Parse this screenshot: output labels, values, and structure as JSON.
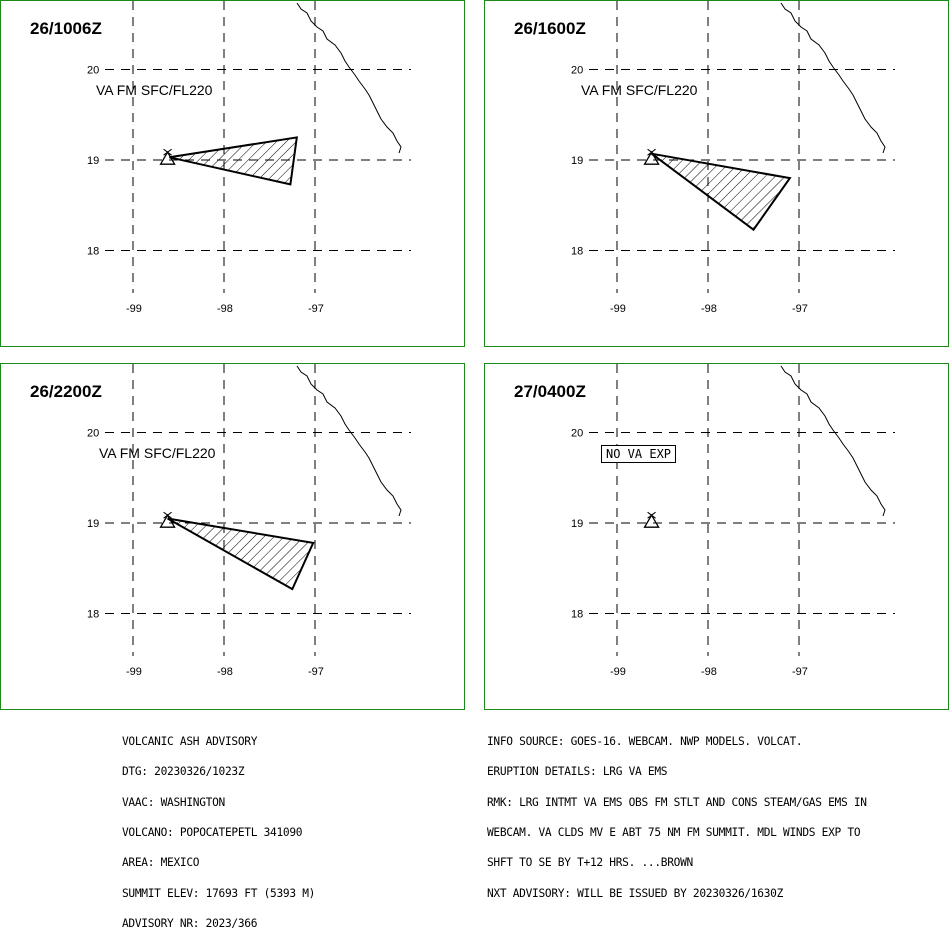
{
  "panels": [
    {
      "title": "26/1006Z",
      "label": "VA FM SFC/FL220",
      "plume": [
        [
          -98.6,
          19.03
        ],
        [
          -97.2,
          19.25
        ],
        [
          -97.27,
          18.73
        ]
      ]
    },
    {
      "title": "26/1600Z",
      "label": "VA FM SFC/FL220",
      "plume": [
        [
          -98.62,
          19.07
        ],
        [
          -97.1,
          18.8
        ],
        [
          -97.5,
          18.23
        ]
      ]
    },
    {
      "title": "26/2200Z",
      "label": "VA FM SFC/FL220",
      "plume": [
        [
          -98.62,
          19.05
        ],
        [
          -97.02,
          18.78
        ],
        [
          -97.25,
          18.27
        ]
      ]
    },
    {
      "title": "27/0400Z",
      "label": "NO VA EXP",
      "plume": null
    }
  ],
  "axes": {
    "lat_ticks": [
      "20",
      "19",
      "18"
    ],
    "lon_ticks": [
      "-99",
      "-98",
      "-97"
    ]
  },
  "volcano": {
    "lon": -98.62,
    "lat": 19.02,
    "icon": "volcano-icon"
  },
  "advisory_left": [
    "VOLCANIC ASH ADVISORY",
    "DTG: 20230326/1023Z",
    "VAAC: WASHINGTON",
    "VOLCANO: POPOCATEPETL 341090",
    "AREA: MEXICO",
    "SUMMIT ELEV: 17693 FT (5393 M)",
    "ADVISORY NR: 2023/366"
  ],
  "advisory_right": [
    "INFO SOURCE: GOES-16. WEBCAM. NWP MODELS. VOLCAT.",
    "ERUPTION DETAILS: LRG VA EMS",
    "RMK: LRG INTMT VA EMS OBS FM STLT AND CONS STEAM/GAS EMS IN",
    "WEBCAM. VA CLDS MV E ABT 75 NM FM SUMMIT. MDL WINDS EXP TO",
    "SHFT TO SE BY T+12 HRS. ...BROWN",
    "NXT ADVISORY: WILL BE ISSUED BY 20230326/1630Z"
  ],
  "colors": {
    "border": "#1a8a1a",
    "ink": "#000000",
    "background": "#ffffff"
  }
}
